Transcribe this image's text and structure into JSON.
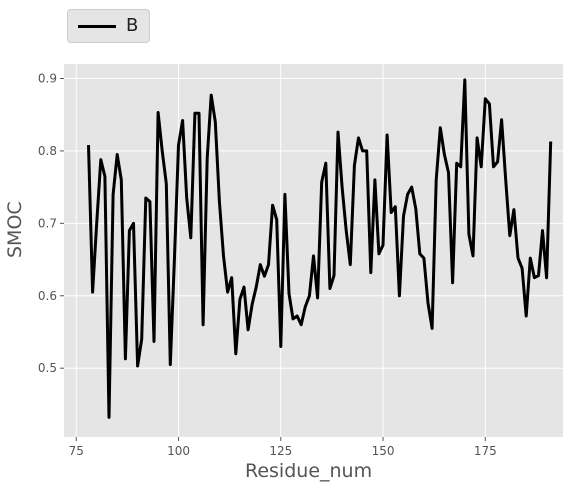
{
  "chart_data": {
    "type": "line",
    "xlabel": "Residue_num",
    "ylabel": "SMOC",
    "xlim": [
      72,
      194
    ],
    "ylim": [
      0.405,
      0.92
    ],
    "xticks": [
      75,
      100,
      125,
      150,
      175
    ],
    "yticks": [
      0.5,
      0.6,
      0.7,
      0.8,
      0.9
    ],
    "grid": true,
    "legend_position": "top-left, outside plot",
    "colors": {
      "panel": "#e5e5e5",
      "grid": "#ffffff",
      "line": "#000000",
      "tick": "#555555"
    },
    "series": [
      {
        "name": "B",
        "x": [
          78,
          79,
          80,
          81,
          82,
          83,
          84,
          85,
          86,
          87,
          88,
          89,
          90,
          91,
          92,
          93,
          94,
          95,
          96,
          97,
          98,
          99,
          100,
          101,
          102,
          103,
          104,
          105,
          106,
          107,
          108,
          109,
          110,
          111,
          112,
          113,
          114,
          115,
          116,
          117,
          118,
          119,
          120,
          121,
          122,
          123,
          124,
          125,
          126,
          127,
          128,
          129,
          130,
          131,
          132,
          133,
          134,
          135,
          136,
          137,
          138,
          139,
          140,
          141,
          142,
          143,
          144,
          145,
          146,
          147,
          148,
          149,
          150,
          151,
          152,
          153,
          154,
          155,
          156,
          157,
          158,
          159,
          160,
          161,
          162,
          163,
          164,
          165,
          166,
          167,
          168,
          169,
          170,
          171,
          172,
          173,
          174,
          175,
          176,
          177,
          178,
          179,
          180,
          181,
          182,
          183,
          184,
          185,
          186,
          187,
          188,
          189,
          190,
          191
        ],
        "y": [
          0.808,
          0.605,
          0.7,
          0.788,
          0.765,
          0.432,
          0.74,
          0.795,
          0.76,
          0.513,
          0.69,
          0.7,
          0.503,
          0.54,
          0.735,
          0.73,
          0.537,
          0.853,
          0.8,
          0.755,
          0.505,
          0.65,
          0.808,
          0.842,
          0.735,
          0.68,
          0.852,
          0.852,
          0.56,
          0.79,
          0.877,
          0.84,
          0.73,
          0.655,
          0.605,
          0.625,
          0.52,
          0.595,
          0.612,
          0.553,
          0.588,
          0.612,
          0.643,
          0.627,
          0.643,
          0.725,
          0.705,
          0.53,
          0.74,
          0.603,
          0.568,
          0.572,
          0.56,
          0.585,
          0.6,
          0.655,
          0.597,
          0.757,
          0.783,
          0.61,
          0.628,
          0.826,
          0.75,
          0.69,
          0.643,
          0.78,
          0.818,
          0.8,
          0.8,
          0.632,
          0.76,
          0.658,
          0.67,
          0.822,
          0.715,
          0.723,
          0.6,
          0.71,
          0.74,
          0.75,
          0.72,
          0.658,
          0.652,
          0.59,
          0.555,
          0.76,
          0.832,
          0.795,
          0.77,
          0.618,
          0.783,
          0.778,
          0.898,
          0.685,
          0.655,
          0.818,
          0.778,
          0.872,
          0.865,
          0.778,
          0.785,
          0.843,
          0.76,
          0.683,
          0.719,
          0.652,
          0.638,
          0.572,
          0.652,
          0.625,
          0.628,
          0.69,
          0.625,
          0.813
        ]
      }
    ]
  }
}
